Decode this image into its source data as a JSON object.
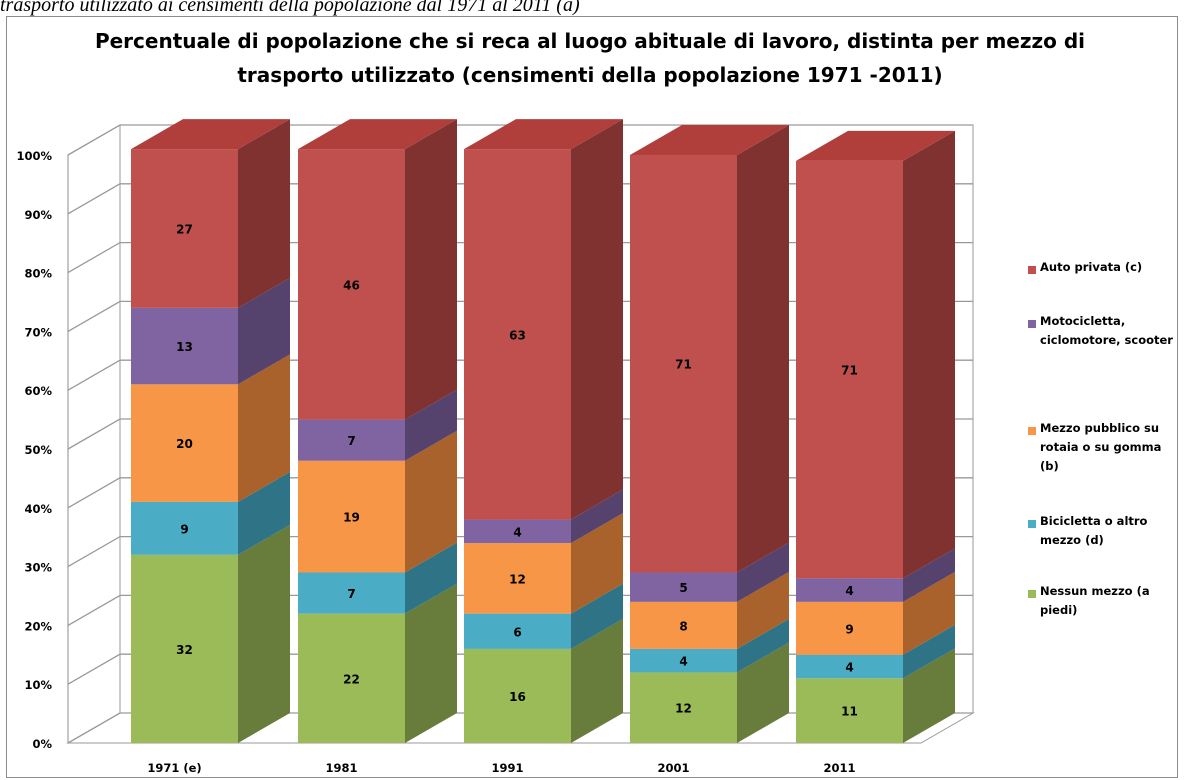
{
  "caption": "trasporto utilizzato ai censimenti della popolazione dal 1971 al 2011 (a)",
  "chart_data": {
    "type": "bar",
    "stacked": true,
    "percent_axis": true,
    "title": "Percentuale di popolazione che si reca al luogo abituale di lavoro, distinta per mezzo di trasporto utilizzato (censimenti della popolazione 1971 -2011)",
    "title_lines": [
      "Percentuale di popolazione che si reca al luogo abituale di lavoro, distinta per mezzo di",
      "trasporto utilizzato (censimenti della popolazione 1971 -2011)"
    ],
    "xlabel": "",
    "ylabel": "",
    "ylim": [
      0,
      100
    ],
    "yticks": [
      "0%",
      "10%",
      "20%",
      "30%",
      "40%",
      "50%",
      "60%",
      "70%",
      "80%",
      "90%",
      "100%"
    ],
    "grid": true,
    "legend_position": "right",
    "categories": [
      "1971 (e)",
      "1981",
      "1991",
      "2001",
      "2011"
    ],
    "series": [
      {
        "name": "Nessun mezzo (a piedi)",
        "legend_lines": [
          "Nessun mezzo (a",
          "piedi)"
        ],
        "color": "#9bbb59",
        "top_color": "#b7d17f",
        "side_color": "#687c3b",
        "values": [
          32,
          22,
          16,
          12,
          11
        ]
      },
      {
        "name": "Bicicletta o altro mezzo (d)",
        "legend_lines": [
          "Bicicletta o altro",
          "mezzo (d)"
        ],
        "color": "#4bacc6",
        "top_color": "#7ec6d9",
        "side_color": "#2f7486",
        "values": [
          9,
          7,
          6,
          4,
          4
        ]
      },
      {
        "name": "Mezzo pubblico su rotaia o su gomma (b)",
        "legend_lines": [
          "Mezzo pubblico su",
          "rotaia o su gomma",
          "(b)"
        ],
        "color": "#f79646",
        "top_color": "#f9b47c",
        "side_color": "#a9622b",
        "values": [
          20,
          19,
          12,
          8,
          9
        ]
      },
      {
        "name": "Motocicletta, ciclomotore, scooter",
        "legend_lines": [
          "Motocicletta,",
          "ciclomotore, scooter"
        ],
        "color": "#8064a2",
        "top_color": "#a08ac0",
        "side_color": "#55436d",
        "values": [
          13,
          7,
          4,
          5,
          4
        ]
      },
      {
        "name": "Auto privata (c)",
        "legend_lines": [
          "Auto privata (c)"
        ],
        "color": "#c0504d",
        "top_color": "#b03f3c",
        "side_color": "#803231",
        "values": [
          27,
          46,
          63,
          71,
          71
        ]
      }
    ]
  }
}
